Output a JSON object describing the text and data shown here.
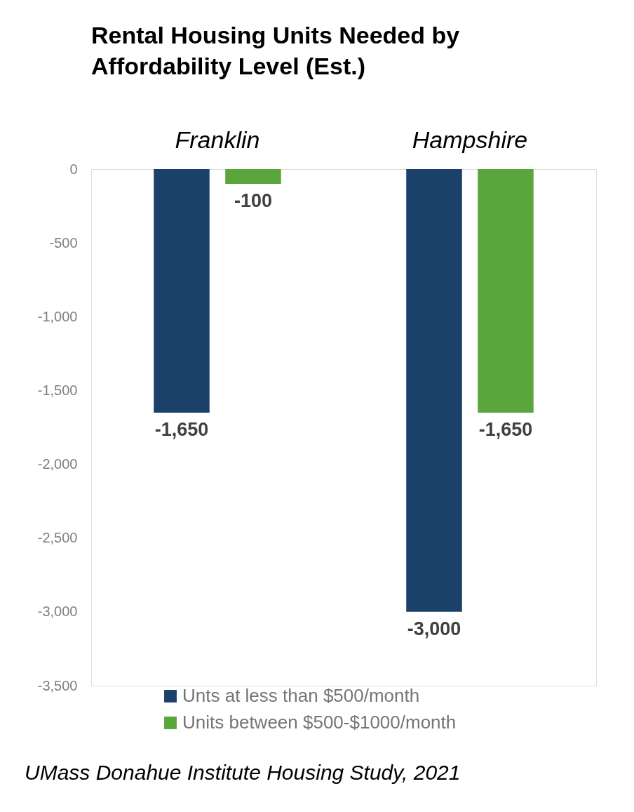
{
  "chart_data": {
    "type": "bar",
    "title": "Rental Housing Units Needed by Affordability Level (Est.)",
    "categories": [
      "Franklin",
      "Hampshire"
    ],
    "series": [
      {
        "name": "Unts at less than $500/month",
        "color": "#1b416b",
        "values": [
          -1650,
          -3000
        ],
        "value_labels": [
          "-1,650",
          "-3,000"
        ]
      },
      {
        "name": "Units between $500-$1000/month",
        "color": "#5aa63c",
        "values": [
          -100,
          -1650
        ],
        "value_labels": [
          "-100",
          "-1,650"
        ]
      }
    ],
    "ylim": [
      -3500,
      0
    ],
    "yticks": [
      0,
      {
        "value": -500,
        "label": "-500"
      },
      {
        "value": -1000,
        "label": "-1,000"
      },
      {
        "value": -1500,
        "label": "-1,500"
      },
      {
        "value": -2000,
        "label": "-2,000"
      },
      {
        "value": -2500,
        "label": "-2,500"
      },
      {
        "value": -3000,
        "label": "-3,000"
      },
      {
        "value": -3500,
        "label": "-3,500"
      }
    ],
    "grid": false,
    "legend": "bottom",
    "annotations": [
      "UMass Donahue Institute Housing Study, 2021"
    ]
  }
}
